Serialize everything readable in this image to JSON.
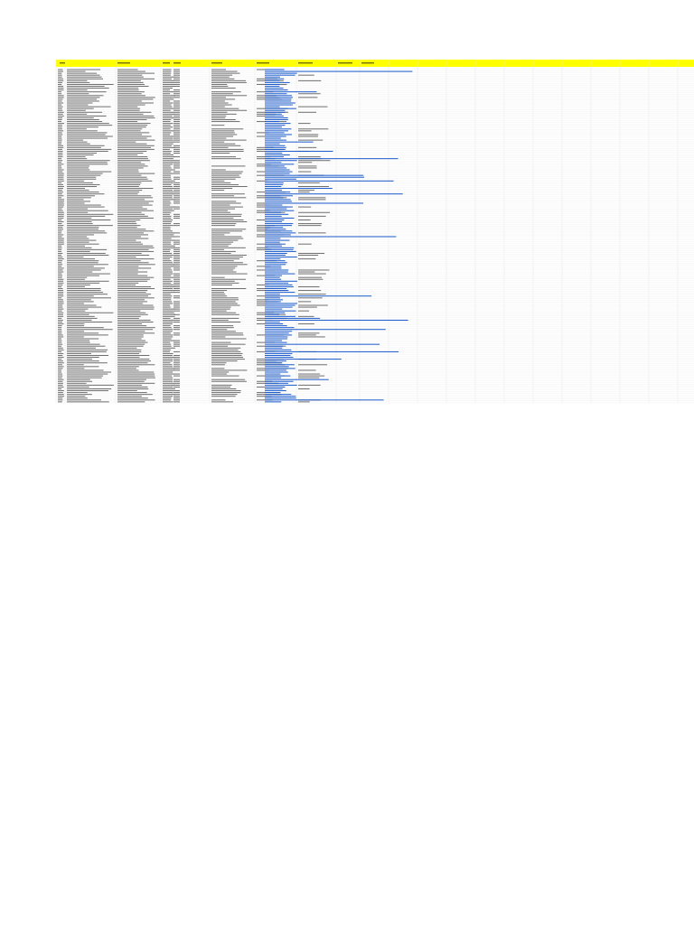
{
  "sheet": {
    "header_color": "#ffff00",
    "header_text_color": "#000000",
    "link_color": "#1155cc",
    "grid_color": "#e2e2e2",
    "text_ink": "#6a6a6a",
    "header_labels": [],
    "row_count_estimate": 180,
    "column_count_estimate": 11,
    "cells_legible": false
  }
}
